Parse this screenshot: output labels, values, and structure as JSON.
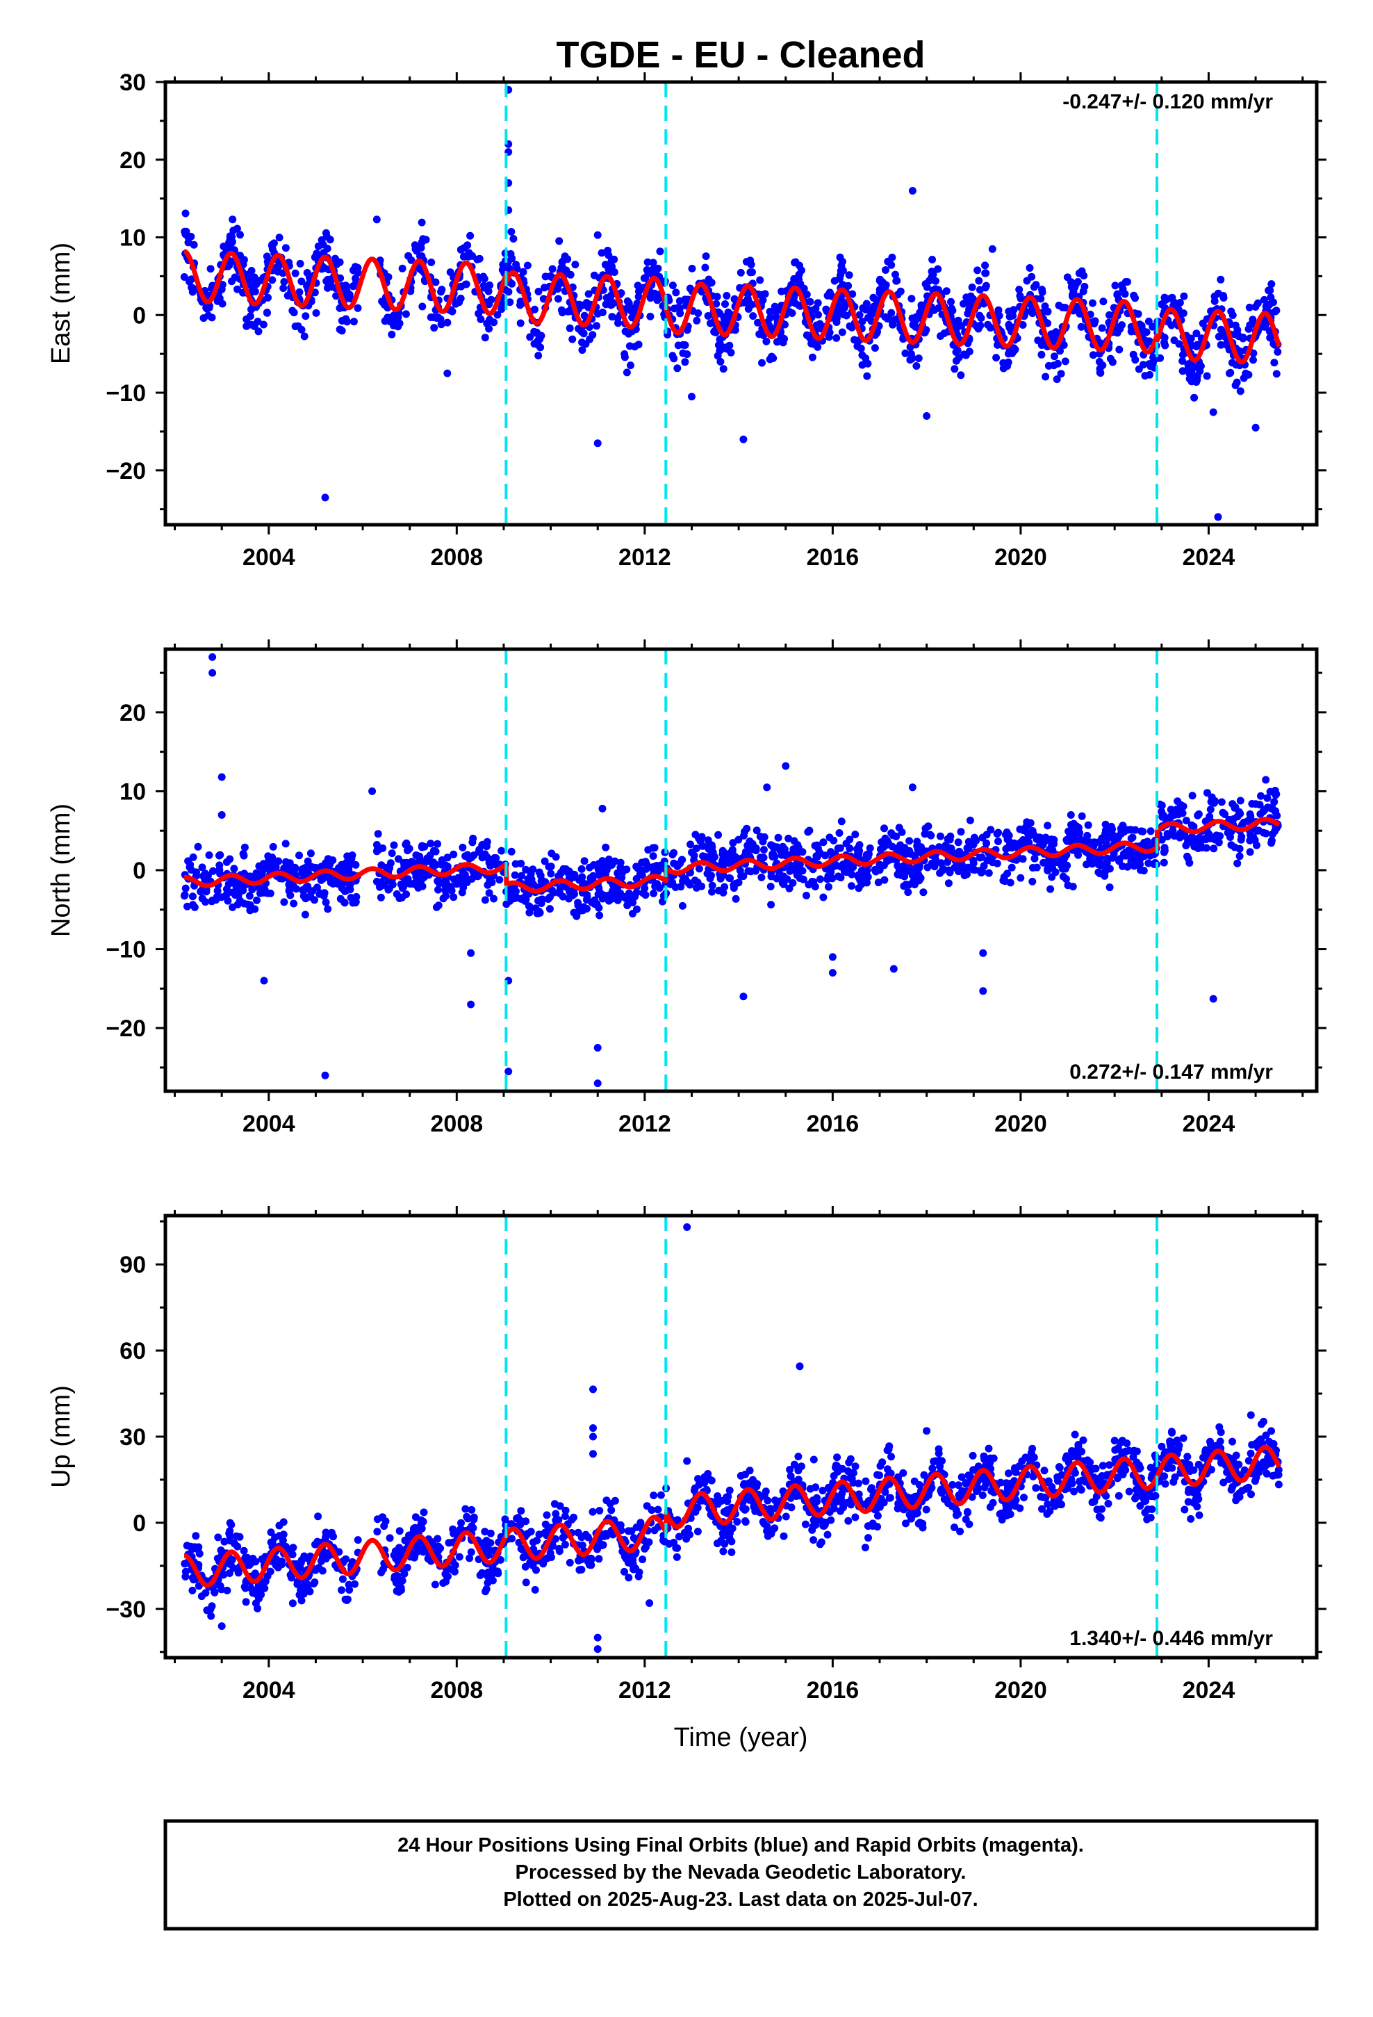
{
  "title": "TGDE  - EU - Cleaned",
  "x_axis_label": "Time (year)",
  "footer": {
    "lines": [
      "24 Hour Positions Using Final Orbits (blue) and Rapid Orbits (magenta).",
      "Processed by the Nevada Geodetic Laboratory.",
      "Plotted on 2025-Aug-23. Last data on 2025-Jul-07."
    ]
  },
  "colors": {
    "points": "#0000ff",
    "model": "#ff0000",
    "steps": "#00e5ee",
    "frame": "#000000"
  },
  "chart_data": [
    {
      "type": "scatter",
      "name_key": "east",
      "ylabel": "East (mm)",
      "xlim": [
        2001.8,
        2026.3
      ],
      "ylim": [
        -27,
        30
      ],
      "xticks": [
        2004,
        2008,
        2012,
        2016,
        2020,
        2024
      ],
      "yticks": [
        -20,
        -10,
        0,
        10,
        20,
        30
      ],
      "rate_label": "-0.247+/- 0.120 mm/yr",
      "rate_position": "top-right",
      "step_lines": [
        2009.05,
        2012.45,
        2022.9
      ],
      "model": {
        "start": 2002.2,
        "end": 2025.5,
        "intercept": 5.0,
        "trend_mm_per_yr": -0.247,
        "annual_amp": 3.2,
        "gap": [
          2005.9,
          2006.3
        ],
        "offsets": [
          {
            "t": 2009.05,
            "dy": -1.0
          },
          {
            "t": 2012.45,
            "dy": -0.5
          },
          {
            "t": 2022.9,
            "dy": -0.8
          }
        ]
      },
      "scatter": {
        "noise": 2.2,
        "data_gap": [
          2005.9,
          2006.3
        ]
      },
      "outliers": [
        [
          2009.1,
          29
        ],
        [
          2009.1,
          22
        ],
        [
          2009.1,
          21
        ],
        [
          2009.1,
          17
        ],
        [
          2009.1,
          13.5
        ],
        [
          2005.2,
          -23.5
        ],
        [
          2011.0,
          -16.5
        ],
        [
          2014.1,
          -16
        ],
        [
          2024.2,
          -26
        ],
        [
          2025.0,
          -14.5
        ],
        [
          2018.0,
          -13
        ],
        [
          2011.0,
          10.3
        ],
        [
          2006.3,
          12.3
        ],
        [
          2017.7,
          16
        ],
        [
          2019.4,
          8.5
        ],
        [
          2007.8,
          -7.5
        ],
        [
          2024.1,
          -12.5
        ],
        [
          2013.0,
          -10.5
        ]
      ]
    },
    {
      "type": "scatter",
      "name_key": "north",
      "ylabel": "North (mm)",
      "xlim": [
        2001.8,
        2026.3
      ],
      "ylim": [
        -28,
        28
      ],
      "xticks": [
        2004,
        2008,
        2012,
        2016,
        2020,
        2024
      ],
      "yticks": [
        -20,
        -10,
        0,
        10,
        20
      ],
      "rate_label": "0.272+/- 0.147 mm/yr",
      "rate_position": "bottom-right",
      "step_lines": [
        2009.05,
        2012.45,
        2022.9
      ],
      "model": {
        "start": 2002.2,
        "end": 2025.5,
        "intercept": -1.5,
        "trend_mm_per_yr": 0.272,
        "annual_amp": 0.6,
        "gap": [
          2005.9,
          2006.3
        ],
        "offsets": [
          {
            "t": 2009.05,
            "dy": -2.6
          },
          {
            "t": 2012.45,
            "dy": 1.5
          },
          {
            "t": 2022.9,
            "dy": 2.2
          }
        ]
      },
      "scatter": {
        "noise": 1.8,
        "data_gap": [
          2005.9,
          2006.3
        ]
      },
      "outliers": [
        [
          2002.8,
          27
        ],
        [
          2002.8,
          25
        ],
        [
          2003.0,
          11.8
        ],
        [
          2003.0,
          7
        ],
        [
          2003.9,
          -14
        ],
        [
          2005.2,
          -26
        ],
        [
          2008.3,
          -10.5
        ],
        [
          2008.3,
          -17
        ],
        [
          2009.1,
          -14
        ],
        [
          2009.1,
          -25.5
        ],
        [
          2011.0,
          -22.5
        ],
        [
          2011.0,
          -27
        ],
        [
          2011.1,
          7.8
        ],
        [
          2014.1,
          -16
        ],
        [
          2015.0,
          13.2
        ],
        [
          2017.7,
          10.5
        ],
        [
          2019.2,
          -15.3
        ],
        [
          2019.2,
          -10.5
        ],
        [
          2024.1,
          -16.3
        ],
        [
          2016.0,
          -13
        ],
        [
          2016.0,
          -11
        ],
        [
          2017.3,
          -12.5
        ],
        [
          2006.2,
          10
        ],
        [
          2014.6,
          10.5
        ]
      ]
    },
    {
      "type": "scatter",
      "name_key": "up",
      "ylabel": "Up (mm)",
      "xlim": [
        2001.8,
        2026.3
      ],
      "ylim": [
        -47,
        107
      ],
      "xticks": [
        2004,
        2008,
        2012,
        2016,
        2020,
        2024
      ],
      "yticks": [
        -30,
        0,
        30,
        60,
        90
      ],
      "rate_label": "1.340+/- 0.446 mm/yr",
      "rate_position": "bottom-right",
      "step_lines": [
        2009.05,
        2012.45,
        2022.9
      ],
      "model": {
        "start": 2002.2,
        "end": 2025.5,
        "intercept": -17.0,
        "trend_mm_per_yr": 1.34,
        "annual_amp": 5.5,
        "gap": [
          2005.9,
          2006.3
        ],
        "offsets": [
          {
            "t": 2012.45,
            "dy": 7.0
          }
        ]
      },
      "scatter": {
        "noise": 4.8,
        "data_gap": [
          2005.9,
          2006.3
        ]
      },
      "outliers": [
        [
          2012.9,
          103
        ],
        [
          2015.3,
          54.5
        ],
        [
          2010.9,
          46.5
        ],
        [
          2010.9,
          33
        ],
        [
          2010.9,
          30
        ],
        [
          2010.9,
          24
        ],
        [
          2018.0,
          32
        ],
        [
          2024.9,
          37.5
        ],
        [
          2011.0,
          -44
        ],
        [
          2011.0,
          -40
        ],
        [
          2012.9,
          21.5
        ],
        [
          2015.6,
          22
        ],
        [
          2012.1,
          -28
        ],
        [
          2003.0,
          -36
        ]
      ]
    }
  ]
}
